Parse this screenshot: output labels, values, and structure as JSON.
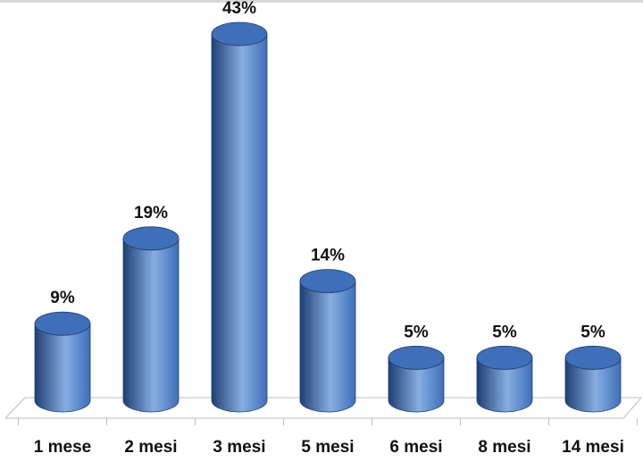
{
  "chart_data": {
    "type": "bar",
    "style": "3d-cylinder",
    "categories": [
      "1 mese",
      "2 mesi",
      "3 mesi",
      "5 mesi",
      "6 mesi",
      "8 mesi",
      "14 mesi"
    ],
    "values": [
      9,
      19,
      43,
      14,
      5,
      5,
      5
    ],
    "value_labels": [
      "9%",
      "19%",
      "43%",
      "14%",
      "5%",
      "5%",
      "5%"
    ],
    "unit": "%",
    "ylim": [
      0,
      43
    ],
    "grid": false,
    "legend": "none",
    "colors": {
      "bar_dark": "#1f3f73",
      "bar_mid": "#3f6fb8",
      "bar_light": "#86aee2",
      "floor_line": "#bfbfbf",
      "text": "#111111"
    }
  }
}
